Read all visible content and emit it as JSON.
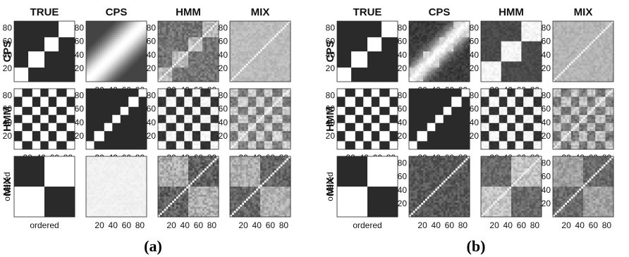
{
  "chart_data": [
    {
      "type": "heatmap",
      "panel_label": "(a)",
      "column_titles": [
        "TRUE",
        "CPS",
        "HMM",
        "MIX"
      ],
      "row_titles": [
        "CPS",
        "HMM",
        "MIX"
      ],
      "tick_labels": [
        "20",
        "40",
        "60",
        "80"
      ],
      "ordered_label": "ordered",
      "colors": {
        "high": "#ffffff",
        "low": "#2a2a2a"
      },
      "cells": [
        [
          {
            "pattern": "blocks",
            "params": {
              "blocks": 4
            },
            "yticks": true,
            "xticks": false
          },
          {
            "pattern": "smooth",
            "params": {
              "width": 0.26,
              "base": 0.12
            },
            "yticks": true,
            "xticks": true
          },
          {
            "pattern": "noisy-blocks",
            "params": {
              "blocks": 4,
              "hi": 0.68,
              "lo": 0.35,
              "noise": 0.25
            },
            "yticks": true,
            "xticks": true
          },
          {
            "pattern": "uniform-noise",
            "params": {
              "level": 0.68,
              "noise": 0.12
            },
            "yticks": true,
            "xticks": false
          }
        ],
        [
          {
            "pattern": "checker",
            "params": {
              "blocks": 7
            },
            "yticks": true,
            "xticks": true
          },
          {
            "pattern": "band",
            "params": {
              "blocks": 7
            },
            "yticks": true,
            "xticks": true
          },
          {
            "pattern": "checker",
            "params": {
              "blocks": 7,
              "soft": 0.08
            },
            "yticks": true,
            "xticks": true
          },
          {
            "pattern": "noisy-checker",
            "params": {
              "blocks": 7,
              "hi": 0.78,
              "lo": 0.38,
              "noise": 0.22
            },
            "yticks": true,
            "xticks": true
          }
        ],
        [
          {
            "pattern": "two-blocks",
            "params": {
              "anti": false
            },
            "ylabel": "ordered",
            "xlabel": "ordered"
          },
          {
            "pattern": "uniform-noise",
            "params": {
              "level": 0.93,
              "noise": 0.05
            },
            "yticks": false,
            "xticks": true
          },
          {
            "pattern": "noisy-two",
            "params": {
              "hi": 0.62,
              "lo": 0.25,
              "noise": 0.3
            },
            "yticks": false,
            "xticks": true
          },
          {
            "pattern": "noisy-two",
            "params": {
              "hi": 0.62,
              "lo": 0.28,
              "noise": 0.25
            },
            "yticks": false,
            "xticks": true
          }
        ]
      ]
    },
    {
      "type": "heatmap",
      "panel_label": "(b)",
      "column_titles": [
        "TRUE",
        "CPS",
        "HMM",
        "MIX"
      ],
      "row_titles": [
        "CPS",
        "HMM",
        "MIX"
      ],
      "tick_labels": [
        "20",
        "40",
        "60",
        "80"
      ],
      "ordered_label": "ordered",
      "colors": {
        "high": "#ffffff",
        "low": "#2a2a2a"
      },
      "cells": [
        [
          {
            "pattern": "blocks",
            "params": {
              "blocks": 4
            },
            "yticks": true,
            "xticks": false
          },
          {
            "pattern": "pixel-band",
            "params": {
              "blocks": 4,
              "width": 0.16
            },
            "yticks": true,
            "xticks": true
          },
          {
            "pattern": "noisy-blocks",
            "params": {
              "blocks": 3,
              "hi": 0.95,
              "lo": 0.15,
              "noise": 0.1
            },
            "yticks": true,
            "xticks": true
          },
          {
            "pattern": "uniform-noise",
            "params": {
              "level": 0.65,
              "noise": 0.12
            },
            "yticks": true,
            "xticks": false
          }
        ],
        [
          {
            "pattern": "checker",
            "params": {
              "blocks": 7
            },
            "yticks": true,
            "xticks": true
          },
          {
            "pattern": "band",
            "params": {
              "blocks": 7
            },
            "yticks": true,
            "xticks": true
          },
          {
            "pattern": "checker",
            "params": {
              "blocks": 7,
              "soft": 0.08
            },
            "yticks": true,
            "xticks": true
          },
          {
            "pattern": "noisy-checker",
            "params": {
              "blocks": 7,
              "hi": 0.72,
              "lo": 0.36,
              "noise": 0.25
            },
            "yticks": true,
            "xticks": true
          }
        ],
        [
          {
            "pattern": "two-blocks",
            "params": {
              "anti": false
            },
            "ylabel": "ordered",
            "xlabel": "ordered"
          },
          {
            "pattern": "uniform-noise",
            "params": {
              "level": 0.22,
              "noise": 0.22
            },
            "yticks": true,
            "xticks": true
          },
          {
            "pattern": "noisy-two-anti",
            "params": {
              "hi": 0.72,
              "lo": 0.3,
              "noise": 0.22
            },
            "yticks": false,
            "xticks": true
          },
          {
            "pattern": "noisy-two",
            "params": {
              "hi": 0.55,
              "lo": 0.3,
              "noise": 0.22
            },
            "yticks": true,
            "xticks": true
          }
        ]
      ]
    }
  ]
}
